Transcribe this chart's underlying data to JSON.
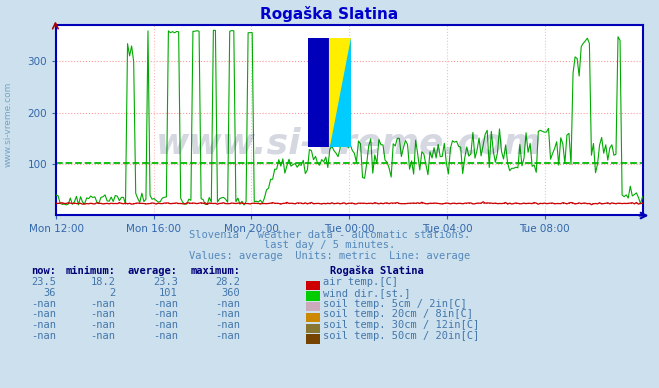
{
  "title": "Rogaška Slatina",
  "title_color": "#0000cc",
  "bg_color": "#cce0ee",
  "plot_bg_color": "#ffffff",
  "x_labels": [
    "Mon 12:00",
    "Mon 16:00",
    "Mon 20:00",
    "Tue 00:00",
    "Tue 04:00",
    "Tue 08:00"
  ],
  "x_ticks_norm": [
    0.0,
    0.1667,
    0.3333,
    0.5,
    0.6667,
    0.8333
  ],
  "ylim_max": 370,
  "yticks": [
    100,
    200,
    300
  ],
  "grid_color_h": "#ff9999",
  "grid_color_v": "#ffbbbb",
  "axis_color": "#0000bb",
  "tick_color": "#3366aa",
  "watermark_text": "www.si-vreme.com",
  "watermark_color": "#1a2a5a",
  "watermark_alpha": 0.18,
  "subtitle1": "Slovenia / weather data - automatic stations.",
  "subtitle2": "last day / 5 minutes.",
  "subtitle3": "Values: average  Units: metric  Line: average",
  "subtitle_color": "#5588bb",
  "table_header": [
    "now:",
    "minimum:",
    "average:",
    "maximum:",
    "Rogaška Slatina"
  ],
  "table_data": [
    [
      "23.5",
      "18.2",
      "23.3",
      "28.2",
      "#cc0000",
      "air temp.[C]"
    ],
    [
      "36",
      "2",
      "101",
      "360",
      "#00cc00",
      "wind dir.[st.]"
    ],
    [
      "-nan",
      "-nan",
      "-nan",
      "-nan",
      "#ccaabb",
      "soil temp. 5cm / 2in[C]"
    ],
    [
      "-nan",
      "-nan",
      "-nan",
      "-nan",
      "#cc8800",
      "soil temp. 20cm / 8in[C]"
    ],
    [
      "-nan",
      "-nan",
      "-nan",
      "-nan",
      "#887733",
      "soil temp. 30cm / 12in[C]"
    ],
    [
      "-nan",
      "-nan",
      "-nan",
      "-nan",
      "#774400",
      "soil temp. 50cm / 20in[C]"
    ]
  ],
  "table_color": "#4477aa",
  "table_bold_color": "#000077",
  "n_points": 288,
  "red_line_avg": 23.3,
  "dashed_line_value": 101,
  "dashed_line_color": "#00bb00",
  "red_dotted_color": "#cc0000",
  "red_line_color": "#cc0000",
  "green_line_color": "#00aa00",
  "left_label": "www.si-vreme.com",
  "left_label_color": "#6699bb"
}
